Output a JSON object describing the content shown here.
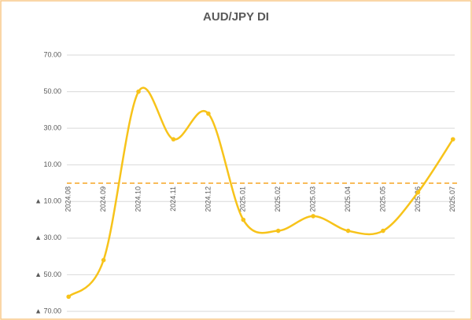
{
  "chart_data": {
    "type": "line",
    "title": "AUD/JPY  DI",
    "categories": [
      "2024.08",
      "2024.09",
      "2024.10",
      "2024.11",
      "2024.12",
      "2025.01",
      "2025.02",
      "2025.03",
      "2025.04",
      "2025.05",
      "2025.06",
      "2025.07"
    ],
    "series": [
      {
        "name": "AUD/JPY DI",
        "color": "#f7c31a",
        "values": [
          -62,
          -42,
          50,
          24,
          38,
          -20,
          -26,
          -18,
          -26,
          -26,
          -5,
          24
        ]
      }
    ],
    "ylim": [
      -70,
      70
    ],
    "yticks": [
      {
        "value": -70,
        "label": "▲ 70.00"
      },
      {
        "value": -50,
        "label": "▲ 50.00"
      },
      {
        "value": -30,
        "label": "▲ 30.00"
      },
      {
        "value": -10,
        "label": "▲ 10.00"
      },
      {
        "value": 10,
        "label": "10.00"
      },
      {
        "value": 30,
        "label": "30.00"
      },
      {
        "value": 50,
        "label": "50.00"
      },
      {
        "value": 70,
        "label": "70.00"
      }
    ],
    "grid": true,
    "smooth": true,
    "reference_line": 0,
    "reference_line_color": "#f5a623",
    "negative_label_color": "#e00000"
  }
}
